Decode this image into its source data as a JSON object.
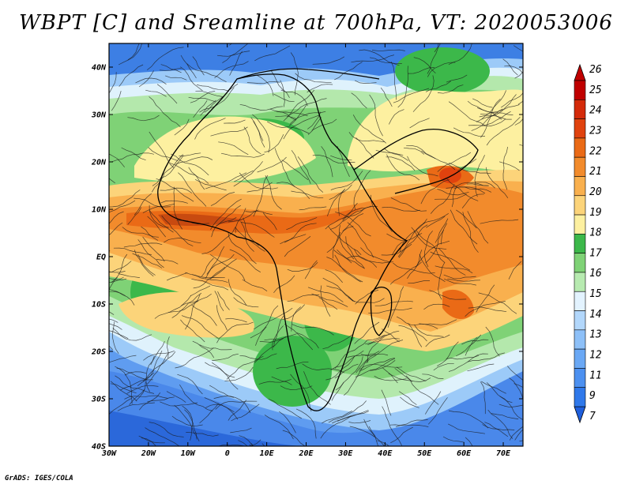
{
  "title": "WBPT [C] and Sreamline at 700hPa, VT: 2020053006",
  "credit": "GrADS: IGES/COLA",
  "map": {
    "lon_range": [
      -30,
      75
    ],
    "lat_range": [
      -40,
      45
    ],
    "lon_ticks": [
      {
        "value": -30,
        "label": "30W"
      },
      {
        "value": -20,
        "label": "20W"
      },
      {
        "value": -10,
        "label": "10W"
      },
      {
        "value": 0,
        "label": "0"
      },
      {
        "value": 10,
        "label": "10E"
      },
      {
        "value": 20,
        "label": "20E"
      },
      {
        "value": 30,
        "label": "30E"
      },
      {
        "value": 40,
        "label": "40E"
      },
      {
        "value": 50,
        "label": "50E"
      },
      {
        "value": 60,
        "label": "60E"
      },
      {
        "value": 70,
        "label": "70E"
      }
    ],
    "lat_ticks": [
      {
        "value": 40,
        "label": "40N"
      },
      {
        "value": 30,
        "label": "30N"
      },
      {
        "value": 20,
        "label": "20N"
      },
      {
        "value": 10,
        "label": "10N"
      },
      {
        "value": 0,
        "label": "EQ"
      },
      {
        "value": -10,
        "label": "10S"
      },
      {
        "value": -20,
        "label": "20S"
      },
      {
        "value": -30,
        "label": "30S"
      },
      {
        "value": -40,
        "label": "40S"
      }
    ]
  },
  "colorbar": {
    "labels": [
      "7",
      "9",
      "11",
      "12",
      "13",
      "14",
      "15",
      "16",
      "17",
      "18",
      "19",
      "20",
      "21",
      "22",
      "23",
      "24",
      "25",
      "26"
    ],
    "colors": [
      "#1f5fdc",
      "#2f78ea",
      "#4c90f0",
      "#6aa8f5",
      "#8dc0f8",
      "#b2d7fb",
      "#e3f3ff",
      "#b7eab0",
      "#7fd276",
      "#3cb84a",
      "#fdf0a0",
      "#fcd47a",
      "#f9b04e",
      "#f28b2c",
      "#ea6a16",
      "#e0420e",
      "#d42a0a",
      "#c00000"
    ]
  }
}
